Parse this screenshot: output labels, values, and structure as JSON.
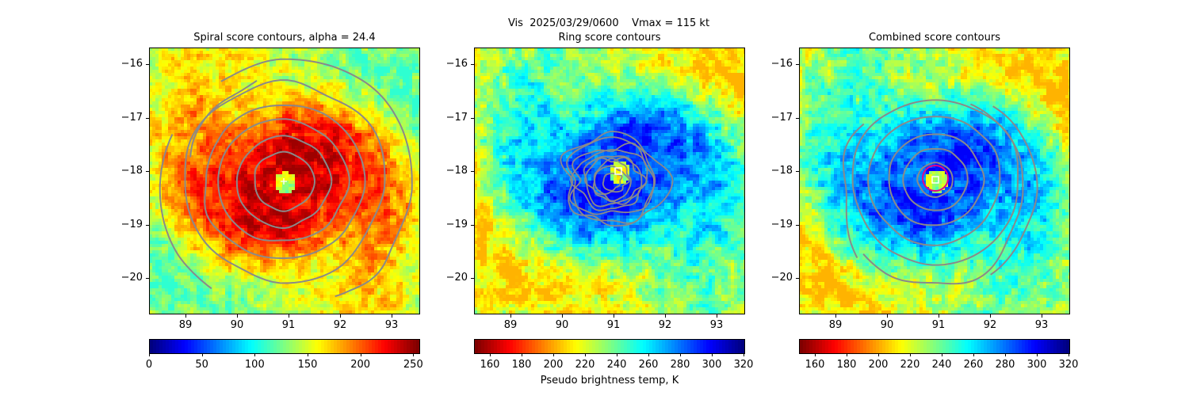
{
  "suptitle": "Vis  2025/03/29/0600    Vmax = 115 kt",
  "colorbar_label": "Pseudo brightness temp, K",
  "chart_data": [
    {
      "type": "heatmap",
      "title": "Spiral score contours, alpha = 24.4",
      "colormap": "jet",
      "xlim": [
        88.3,
        93.55
      ],
      "ylim": [
        -20.7,
        -15.7
      ],
      "xticks": [
        "89",
        "90",
        "91",
        "92",
        "93"
      ],
      "yticks": [
        "−16",
        "−17",
        "−18",
        "−19",
        "−20"
      ],
      "contours": "gray spiral score contours",
      "center_marker": {
        "symbol": "+",
        "x": 90.9,
        "y": -18.2
      },
      "colorbar": {
        "range": [
          0,
          255
        ],
        "ticks": [
          "0",
          "50",
          "100",
          "150",
          "200",
          "250"
        ]
      }
    },
    {
      "type": "heatmap",
      "title": "Ring score contours",
      "colormap": "jet_r",
      "xlim": [
        88.3,
        93.55
      ],
      "ylim": [
        -20.7,
        -15.7
      ],
      "xticks": [
        "89",
        "90",
        "91",
        "92",
        "93"
      ],
      "yticks": [
        "−16",
        "−17",
        "−18",
        "−19",
        "−20"
      ],
      "contours": "gray ring score contours",
      "center_marker": {
        "symbol": "square",
        "x": 90.9,
        "y": -18.0
      },
      "colorbar": {
        "range": [
          150,
          320
        ],
        "ticks": [
          "160",
          "180",
          "200",
          "220",
          "240",
          "260",
          "280",
          "300",
          "320"
        ]
      }
    },
    {
      "type": "heatmap",
      "title": "Combined score contours",
      "colormap": "jet_r",
      "xlim": [
        88.3,
        93.55
      ],
      "ylim": [
        -20.7,
        -15.7
      ],
      "xticks": [
        "89",
        "90",
        "91",
        "92",
        "93"
      ],
      "yticks": [
        "−16",
        "−17",
        "−18",
        "−19",
        "−20"
      ],
      "contours": "gray combined score contours",
      "center_marker": {
        "symbol": "square",
        "x": 90.85,
        "y": -18.15
      },
      "eye_circle": {
        "x": 90.85,
        "y": -18.15,
        "radius_deg": 0.25,
        "color": "#e0008c"
      },
      "colorbar": {
        "range": [
          150,
          320
        ],
        "ticks": [
          "160",
          "180",
          "200",
          "220",
          "240",
          "260",
          "280",
          "300",
          "320"
        ]
      }
    }
  ]
}
